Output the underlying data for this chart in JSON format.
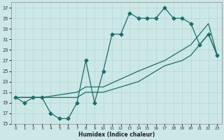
{
  "xlabel": "Humidex (Indice chaleur)",
  "xlim": [
    -0.5,
    23.5
  ],
  "ylim": [
    15,
    38
  ],
  "yticks": [
    15,
    17,
    19,
    21,
    23,
    25,
    27,
    29,
    31,
    33,
    35,
    37
  ],
  "xticks": [
    0,
    1,
    2,
    3,
    4,
    5,
    6,
    7,
    8,
    9,
    10,
    11,
    12,
    13,
    14,
    15,
    16,
    17,
    18,
    19,
    20,
    21,
    22,
    23
  ],
  "bg_color": "#cce8e6",
  "grid_color": "#b8d8d6",
  "line_color": "#1a6e6a",
  "curve1_x": [
    0,
    1,
    2,
    3,
    4,
    5,
    6,
    7,
    8,
    9,
    10,
    11,
    12,
    13,
    14,
    15,
    16,
    17,
    18,
    19,
    20,
    21,
    22,
    23
  ],
  "curve1_y": [
    20,
    19,
    20,
    20,
    17,
    16,
    16,
    19,
    27,
    19,
    25,
    32,
    32,
    36,
    35,
    35,
    35,
    37,
    35,
    35,
    34,
    30,
    32,
    28
  ],
  "curve2_x": [
    0,
    3,
    7,
    8,
    9,
    10,
    14,
    17,
    19,
    20,
    21,
    22,
    23
  ],
  "curve2_y": [
    20,
    20,
    21,
    22,
    22,
    22,
    25,
    27,
    29,
    30,
    32,
    34,
    28
  ],
  "curve3_x": [
    0,
    3,
    7,
    8,
    9,
    10,
    14,
    17,
    19,
    20,
    21,
    22,
    23
  ],
  "curve3_y": [
    20,
    20,
    20,
    21,
    21,
    21,
    23,
    26,
    27,
    28,
    30,
    32,
    28
  ]
}
